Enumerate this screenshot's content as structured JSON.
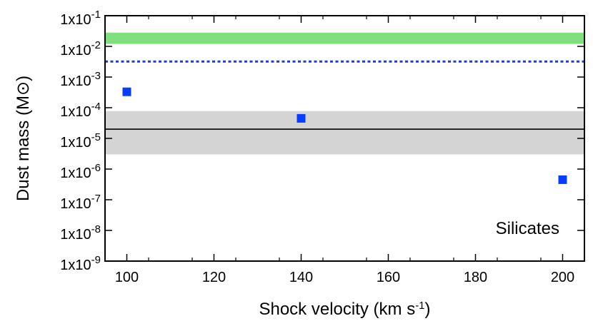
{
  "chart_data": {
    "type": "scatter",
    "title": "",
    "xlabel": "Shock velocity (km s",
    "xlabel_sup": "-1",
    "xlabel_end": ")",
    "ylabel": "Dust mass (M⊙)",
    "xlim": [
      95,
      205
    ],
    "ylim_log10": [
      -9,
      -1
    ],
    "yscale": "log",
    "x_ticks": [
      100,
      120,
      140,
      160,
      180,
      200
    ],
    "x_tick_labels": [
      "100",
      "120",
      "140",
      "160",
      "180",
      "200"
    ],
    "y_ticks_exp": [
      -1,
      -2,
      -3,
      -4,
      -5,
      -6,
      -7,
      -8,
      -9
    ],
    "y_tick_base": "1x10",
    "y_tick_exp_labels": [
      "-1",
      "-2",
      "-3",
      "-4",
      "-5",
      "-6",
      "-7",
      "-8",
      "-9"
    ],
    "series": [
      {
        "name": "Silicates model",
        "marker": "square",
        "color": "#0a3cff",
        "points": [
          {
            "x": 100,
            "y": 0.00033
          },
          {
            "x": 140,
            "y": 4.5e-05
          },
          {
            "x": 200,
            "y": 4.5e-07
          }
        ]
      }
    ],
    "bands": [
      {
        "name": "green-band",
        "ymin": 0.012,
        "ymax": 0.028,
        "color": "#80e080"
      },
      {
        "name": "gray-band",
        "ymin": 3e-06,
        "ymax": 7.8e-05,
        "color": "#d4d4d4"
      }
    ],
    "hlines": [
      {
        "name": "blue-dotted-line",
        "y": 0.0032,
        "color": "#1a3ce0",
        "style": "dotted"
      },
      {
        "name": "black-solid-line",
        "y": 2e-05,
        "color": "#000000",
        "style": "solid"
      }
    ],
    "annotation": "Silicates"
  }
}
